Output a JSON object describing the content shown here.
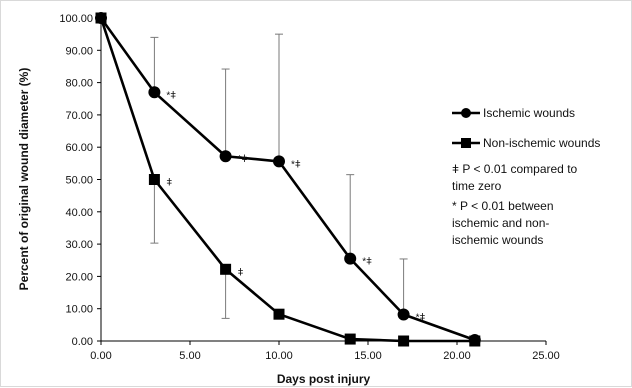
{
  "chart_data": {
    "type": "line",
    "xlabel": "Days post injury",
    "ylabel": "Percent of original wound diameter (%)",
    "xlim": [
      0,
      25
    ],
    "ylim": [
      0,
      100
    ],
    "x_ticks": [
      "0.00",
      "5.00",
      "10.00",
      "15.00",
      "20.00",
      "25.00"
    ],
    "y_ticks": [
      "0.00",
      "10.00",
      "20.00",
      "30.00",
      "40.00",
      "50.00",
      "60.00",
      "70.00",
      "80.00",
      "90.00",
      "100.00"
    ],
    "series": [
      {
        "name": "Ischemic wounds",
        "marker": "circle",
        "color": "#000000",
        "x": [
          0,
          3,
          7,
          10,
          14,
          17,
          21
        ],
        "y": [
          100,
          77,
          57.2,
          55.6,
          25.5,
          8.2,
          0.3
        ],
        "error_upper": [
          null,
          94,
          84.2,
          95,
          51.5,
          25.4,
          null
        ],
        "annotations": [
          "",
          "*ǂ",
          "*ǂ",
          "*ǂ",
          "*ǂ",
          "*ǂ",
          ""
        ]
      },
      {
        "name": "Non-ischemic wounds",
        "marker": "square",
        "color": "#000000",
        "x": [
          0,
          3,
          7,
          10,
          14,
          17,
          21
        ],
        "y": [
          100,
          50,
          22.2,
          8.3,
          0.6,
          0,
          0
        ],
        "error_lower": [
          null,
          30.3,
          7,
          null,
          null,
          null,
          null
        ],
        "annotations": [
          "",
          "ǂ",
          "ǂ",
          "",
          "",
          "",
          ""
        ]
      }
    ],
    "legend": {
      "placement": "right",
      "entries": [
        "Ischemic wounds",
        "Non-ischemic wounds"
      ]
    },
    "notes": [
      "ǂ P < 0.01 compared to",
      "time zero",
      "* P < 0.01 between",
      "ischemic and non-",
      "ischemic wounds"
    ],
    "grid": false
  }
}
